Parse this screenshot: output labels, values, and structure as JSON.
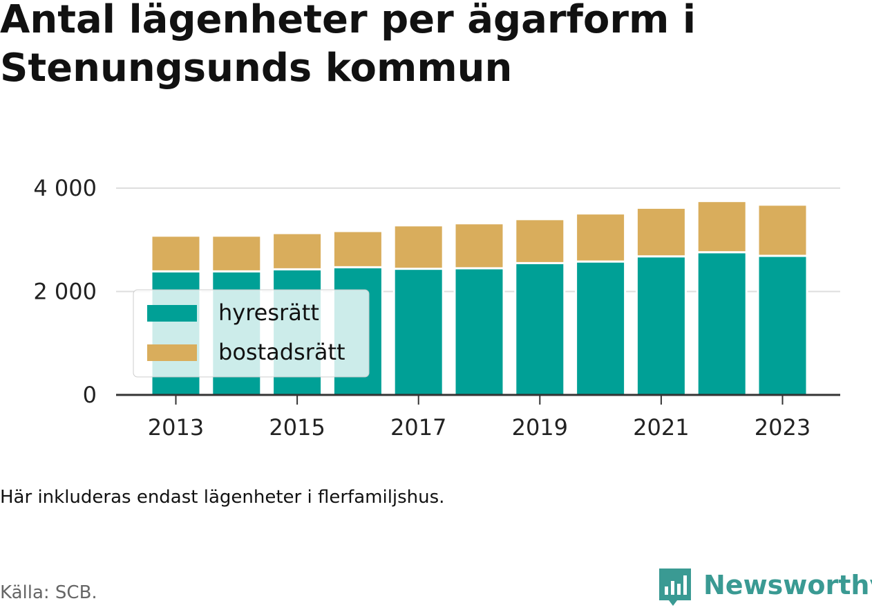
{
  "title": "Antal lägenheter per ägarform i Stenungsunds kommun",
  "note": "Här inkluderas endast lägenheter i flerfamiljshus.",
  "source": "Källa: SCB.",
  "brand": "Newsworthy",
  "colors": {
    "hyresratt": "#00a096",
    "bostadsratt": "#d9ad5c",
    "grid": "#dddddd",
    "axis": "#333333"
  },
  "chart_data": {
    "type": "bar",
    "stacked": true,
    "categories": [
      "2013",
      "2014",
      "2015",
      "2016",
      "2017",
      "2018",
      "2019",
      "2020",
      "2021",
      "2022",
      "2023"
    ],
    "x_tick_labels": [
      "2013",
      "2015",
      "2017",
      "2019",
      "2021",
      "2023"
    ],
    "y_tick_labels": [
      "0",
      "2 000",
      "4 000"
    ],
    "y_ticks": [
      0,
      2000,
      4000
    ],
    "ylim": [
      0,
      4000
    ],
    "series": [
      {
        "name": "hyresrätt",
        "color": "#00a096",
        "values": [
          2390,
          2390,
          2430,
          2470,
          2440,
          2450,
          2550,
          2580,
          2680,
          2760,
          2690
        ]
      },
      {
        "name": "bostadsrätt",
        "color": "#d9ad5c",
        "values": [
          690,
          690,
          700,
          700,
          840,
          870,
          850,
          930,
          940,
          990,
          990
        ]
      }
    ],
    "legend": "left, overlaid on bars",
    "grid": "horizontal"
  }
}
